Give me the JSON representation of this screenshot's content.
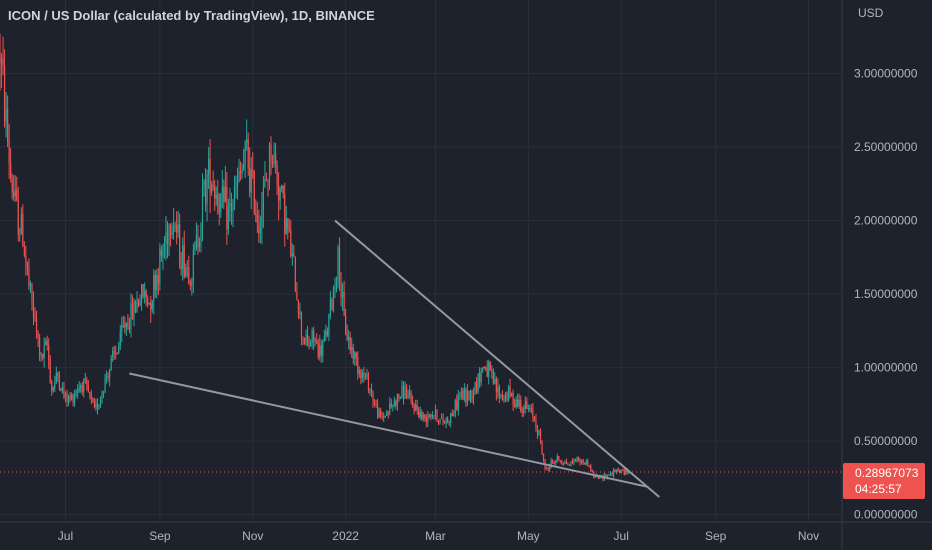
{
  "chart_title": {
    "symbol": "ICON / US Dollar (calculated by TradingView)",
    "interval": "1D",
    "exchange": "BINANCE"
  },
  "colors": {
    "background": "#1e222d",
    "grid": "#2a2e39",
    "text": "#b2b5be",
    "title": "#d1d4dc",
    "up": "#26a69a",
    "down": "#ef5350",
    "trendline": "#9598a1",
    "price_badge": "#ef5350"
  },
  "price_axis": {
    "currency": "USD",
    "tick_labels": [
      "3.00000000",
      "2.50000000",
      "2.00000000",
      "1.50000000",
      "1.00000000",
      "0.50000000",
      "0.00000000"
    ]
  },
  "time_axis": {
    "tick_labels": [
      "Jul",
      "Sep",
      "Nov",
      "2022",
      "Mar",
      "May",
      "Jul",
      "Sep",
      "Nov"
    ]
  },
  "current_price": {
    "value": "0.28967073",
    "countdown": "04:25:57"
  },
  "chart_data": {
    "type": "candlestick",
    "title": "ICON / US Dollar (calculated by TradingView), 1D, BINANCE",
    "ylabel": "USD",
    "ylim": [
      -0.05,
      3.5
    ],
    "xlim": [
      "2021-05-19",
      "2022-11-23"
    ],
    "grid": true,
    "last_price": 0.28967073,
    "price_series": [
      [
        "2021-05-19",
        3.15
      ],
      [
        "2021-05-22",
        2.8
      ],
      [
        "2021-05-26",
        2.3
      ],
      [
        "2021-05-30",
        2.05
      ],
      [
        "2021-06-03",
        1.9
      ],
      [
        "2021-06-07",
        1.55
      ],
      [
        "2021-06-11",
        1.3
      ],
      [
        "2021-06-15",
        1.05
      ],
      [
        "2021-06-19",
        1.15
      ],
      [
        "2021-06-22",
        0.85
      ],
      [
        "2021-06-26",
        0.95
      ],
      [
        "2021-06-30",
        0.8
      ],
      [
        "2021-07-04",
        0.78
      ],
      [
        "2021-07-08",
        0.85
      ],
      [
        "2021-07-12",
        0.9
      ],
      [
        "2021-07-16",
        0.82
      ],
      [
        "2021-07-20",
        0.7
      ],
      [
        "2021-07-24",
        0.8
      ],
      [
        "2021-07-28",
        0.95
      ],
      [
        "2021-08-01",
        1.05
      ],
      [
        "2021-08-05",
        1.15
      ],
      [
        "2021-08-09",
        1.3
      ],
      [
        "2021-08-13",
        1.35
      ],
      [
        "2021-08-17",
        1.45
      ],
      [
        "2021-08-21",
        1.5
      ],
      [
        "2021-08-25",
        1.45
      ],
      [
        "2021-08-29",
        1.6
      ],
      [
        "2021-09-02",
        1.75
      ],
      [
        "2021-09-06",
        1.95
      ],
      [
        "2021-09-10",
        2.05
      ],
      [
        "2021-09-14",
        1.8
      ],
      [
        "2021-09-18",
        1.7
      ],
      [
        "2021-09-22",
        1.65
      ],
      [
        "2021-09-26",
        1.9
      ],
      [
        "2021-09-30",
        2.2
      ],
      [
        "2021-10-04",
        2.35
      ],
      [
        "2021-10-08",
        2.2
      ],
      [
        "2021-10-12",
        2.1
      ],
      [
        "2021-10-16",
        2.05
      ],
      [
        "2021-10-20",
        2.15
      ],
      [
        "2021-10-24",
        2.3
      ],
      [
        "2021-10-28",
        2.45
      ],
      [
        "2021-11-01",
        2.2
      ],
      [
        "2021-11-05",
        2.0
      ],
      [
        "2021-11-09",
        2.2
      ],
      [
        "2021-11-13",
        2.5
      ],
      [
        "2021-11-17",
        2.3
      ],
      [
        "2021-11-21",
        2.1
      ],
      [
        "2021-11-25",
        1.85
      ],
      [
        "2021-11-29",
        1.6
      ],
      [
        "2021-12-03",
        1.25
      ],
      [
        "2021-12-07",
        1.15
      ],
      [
        "2021-12-11",
        1.2
      ],
      [
        "2021-12-15",
        1.1
      ],
      [
        "2021-12-19",
        1.2
      ],
      [
        "2021-12-23",
        1.45
      ],
      [
        "2021-12-27",
        1.75
      ],
      [
        "2021-12-31",
        1.3
      ],
      [
        "2022-01-04",
        1.15
      ],
      [
        "2022-01-08",
        1.05
      ],
      [
        "2022-01-12",
        0.95
      ],
      [
        "2022-01-16",
        0.9
      ],
      [
        "2022-01-20",
        0.75
      ],
      [
        "2022-01-24",
        0.65
      ],
      [
        "2022-01-28",
        0.7
      ],
      [
        "2022-02-01",
        0.75
      ],
      [
        "2022-02-05",
        0.8
      ],
      [
        "2022-02-09",
        0.85
      ],
      [
        "2022-02-13",
        0.75
      ],
      [
        "2022-02-17",
        0.72
      ],
      [
        "2022-02-21",
        0.65
      ],
      [
        "2022-02-25",
        0.7
      ],
      [
        "2022-03-01",
        0.68
      ],
      [
        "2022-03-05",
        0.63
      ],
      [
        "2022-03-09",
        0.65
      ],
      [
        "2022-03-13",
        0.7
      ],
      [
        "2022-03-17",
        0.82
      ],
      [
        "2022-03-21",
        0.8
      ],
      [
        "2022-03-25",
        0.83
      ],
      [
        "2022-03-29",
        0.92
      ],
      [
        "2022-04-02",
        1.02
      ],
      [
        "2022-04-06",
        0.95
      ],
      [
        "2022-04-10",
        0.85
      ],
      [
        "2022-04-14",
        0.8
      ],
      [
        "2022-04-18",
        0.82
      ],
      [
        "2022-04-22",
        0.78
      ],
      [
        "2022-04-26",
        0.75
      ],
      [
        "2022-04-30",
        0.72
      ],
      [
        "2022-05-04",
        0.68
      ],
      [
        "2022-05-08",
        0.55
      ],
      [
        "2022-05-12",
        0.3
      ],
      [
        "2022-05-16",
        0.35
      ],
      [
        "2022-05-20",
        0.38
      ],
      [
        "2022-05-24",
        0.36
      ],
      [
        "2022-05-28",
        0.34
      ],
      [
        "2022-06-01",
        0.38
      ],
      [
        "2022-06-05",
        0.36
      ],
      [
        "2022-06-09",
        0.35
      ],
      [
        "2022-06-13",
        0.26
      ],
      [
        "2022-06-17",
        0.25
      ],
      [
        "2022-06-21",
        0.27
      ],
      [
        "2022-06-25",
        0.28
      ],
      [
        "2022-06-29",
        0.3
      ],
      [
        "2022-07-03",
        0.29
      ],
      [
        "2022-07-06",
        0.29
      ]
    ],
    "trendlines": [
      {
        "from": [
          "2021-12-25",
          2.0
        ],
        "to": [
          "2022-07-26",
          0.12
        ]
      },
      {
        "from": [
          "2021-08-12",
          0.96
        ],
        "to": [
          "2022-07-18",
          0.19
        ]
      }
    ]
  }
}
